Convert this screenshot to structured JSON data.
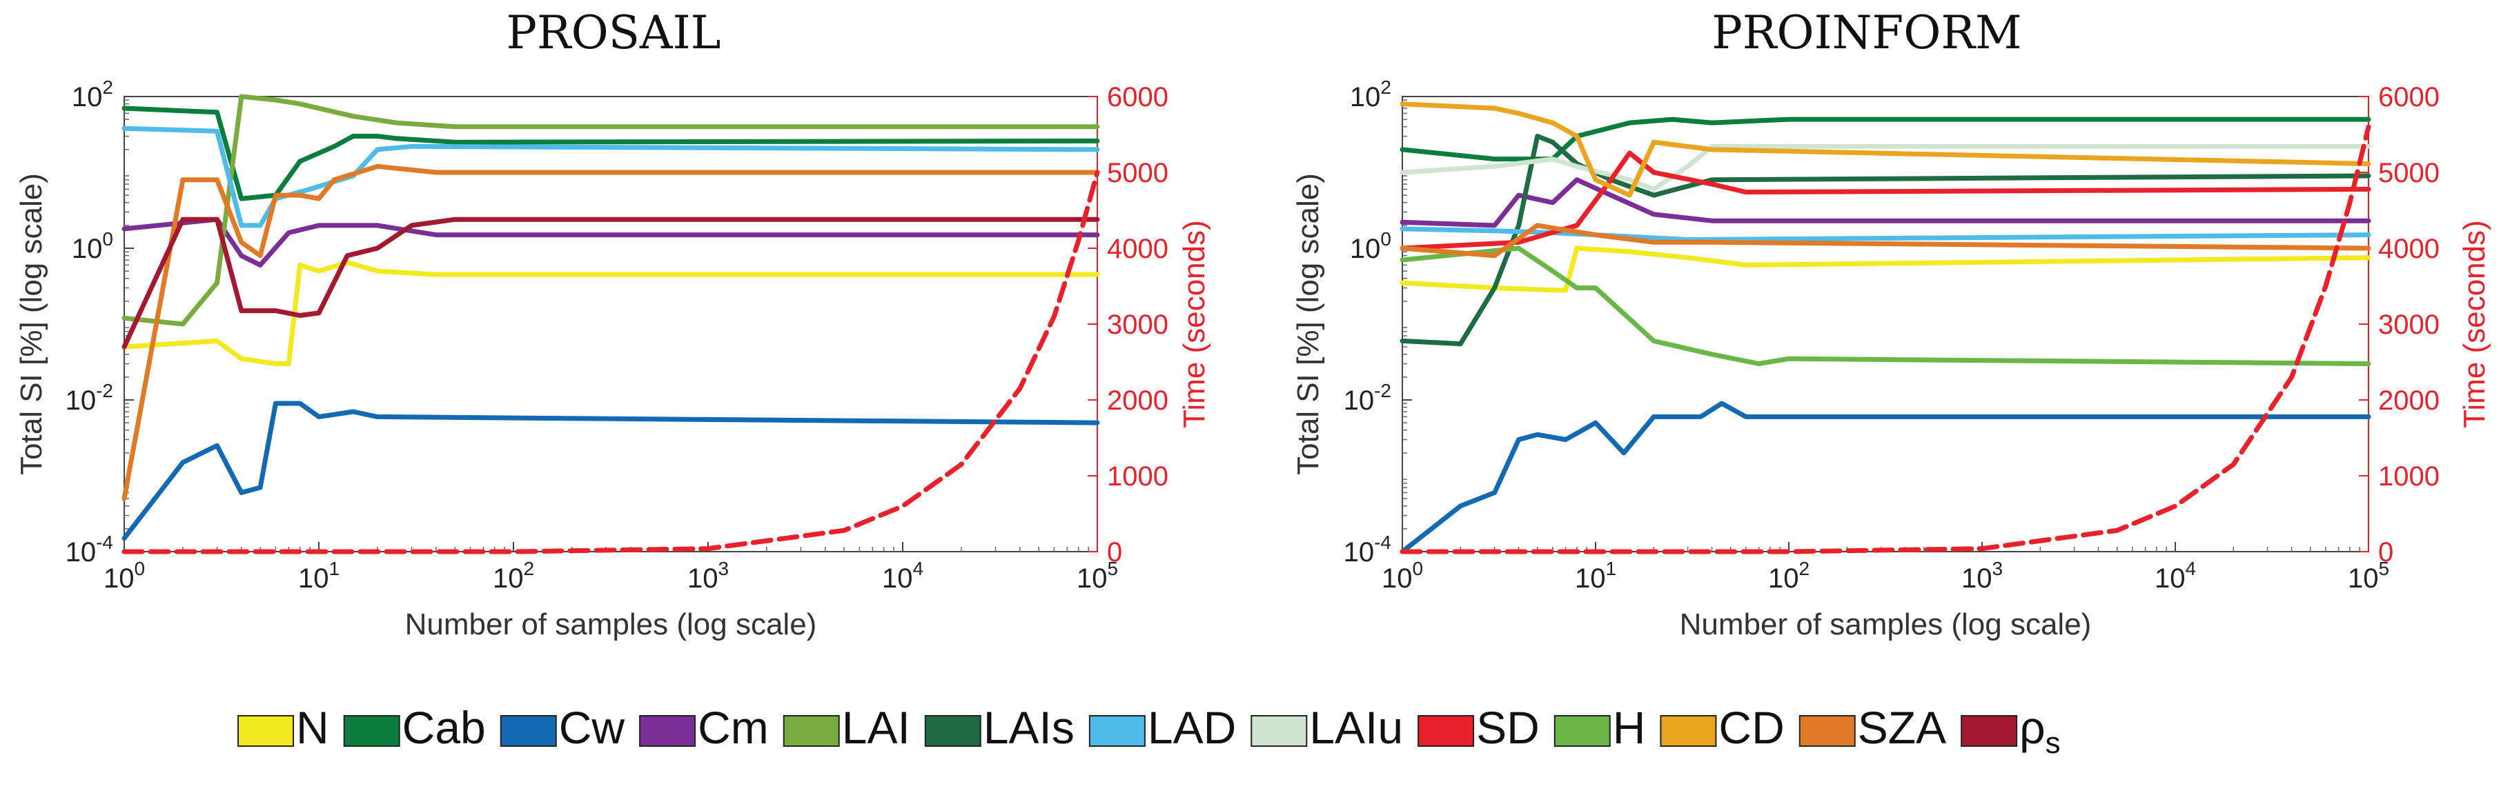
{
  "figure": {
    "legend": [
      {
        "label": "N",
        "color": "#f2ea1f"
      },
      {
        "label": "Cab",
        "color": "#0b7d3d"
      },
      {
        "label": "Cw",
        "color": "#1469b3"
      },
      {
        "label": "Cm",
        "color": "#7b2f96"
      },
      {
        "label": "LAI",
        "color": "#7aab3e"
      },
      {
        "label": "LAIs",
        "color": "#1f6b44"
      },
      {
        "label": "LAD",
        "color": "#4fbbe8"
      },
      {
        "label": "LAIu",
        "color": "#cfe5d2"
      },
      {
        "label": "SD",
        "color": "#e8212a"
      },
      {
        "label": "H",
        "color": "#6ab648"
      },
      {
        "label": "CD",
        "color": "#eaa520"
      },
      {
        "label": "SZA",
        "color": "#e07a27"
      },
      {
        "label": "ρ",
        "sub": "s",
        "color": "#a3192f"
      }
    ]
  },
  "chart_data": [
    {
      "type": "line",
      "title": "PROSAIL",
      "xlabel": "Number of samples (log scale)",
      "ylabel": "Total SI [%] (log scale)",
      "ylabel_right": "Time (seconds)",
      "xscale": "log",
      "yscale": "log",
      "xlim": [
        1,
        100000
      ],
      "ylim": [
        0.0001,
        100
      ],
      "ylim_right": [
        0,
        6000
      ],
      "x_ticks": [
        {
          "base": "10",
          "exp": "0"
        },
        {
          "base": "10",
          "exp": "1"
        },
        {
          "base": "10",
          "exp": "2"
        },
        {
          "base": "10",
          "exp": "3"
        },
        {
          "base": "10",
          "exp": "4"
        },
        {
          "base": "10",
          "exp": "5"
        }
      ],
      "y_ticks": [
        {
          "base": "10",
          "exp": "2"
        },
        {
          "base": "10",
          "exp": "0"
        },
        {
          "base": "10",
          "exp": "-2"
        },
        {
          "base": "10",
          "exp": "-4"
        }
      ],
      "y_right_ticks": [
        "6000",
        "5000",
        "4000",
        "3000",
        "2000",
        "1000",
        "0"
      ],
      "series": [
        {
          "name": "N",
          "color": "#f2ea1f",
          "points": [
            [
              1,
              0.05
            ],
            [
              3,
              0.06
            ],
            [
              4,
              0.035
            ],
            [
              6,
              0.03
            ],
            [
              7,
              0.03
            ],
            [
              8,
              0.6
            ],
            [
              10,
              0.5
            ],
            [
              14,
              0.65
            ],
            [
              20,
              0.5
            ],
            [
              40,
              0.45
            ],
            [
              100000,
              0.45
            ]
          ]
        },
        {
          "name": "Cab",
          "color": "#0b7d3d",
          "points": [
            [
              1,
              70
            ],
            [
              3,
              62
            ],
            [
              4,
              4.5
            ],
            [
              6,
              5
            ],
            [
              8,
              14
            ],
            [
              12,
              22
            ],
            [
              15,
              30
            ],
            [
              20,
              30
            ],
            [
              25,
              28
            ],
            [
              50,
              25
            ],
            [
              100000,
              26
            ]
          ]
        },
        {
          "name": "Cw",
          "color": "#1469b3",
          "points": [
            [
              1,
              0.00015
            ],
            [
              2,
              0.0015
            ],
            [
              3,
              0.0025
            ],
            [
              4,
              0.0006
            ],
            [
              5,
              0.0007
            ],
            [
              6,
              0.009
            ],
            [
              8,
              0.009
            ],
            [
              10,
              0.006
            ],
            [
              15,
              0.007
            ],
            [
              20,
              0.006
            ],
            [
              100000,
              0.005
            ]
          ]
        },
        {
          "name": "Cm",
          "color": "#7b2f96",
          "points": [
            [
              1,
              1.8
            ],
            [
              3,
              2.4
            ],
            [
              4,
              0.8
            ],
            [
              5,
              0.6
            ],
            [
              7,
              1.6
            ],
            [
              10,
              2
            ],
            [
              20,
              2
            ],
            [
              40,
              1.5
            ],
            [
              100000,
              1.5
            ]
          ]
        },
        {
          "name": "LAI",
          "color": "#7aab3e",
          "points": [
            [
              1,
              0.12
            ],
            [
              2,
              0.1
            ],
            [
              3,
              0.35
            ],
            [
              4,
              100
            ],
            [
              6,
              90
            ],
            [
              8,
              80
            ],
            [
              15,
              55
            ],
            [
              25,
              45
            ],
            [
              50,
              40
            ],
            [
              100000,
              40
            ]
          ]
        },
        {
          "name": "LAD",
          "color": "#4fbbe8",
          "points": [
            [
              1,
              38
            ],
            [
              3,
              35
            ],
            [
              4,
              2
            ],
            [
              5,
              2
            ],
            [
              6,
              4.5
            ],
            [
              9,
              6
            ],
            [
              15,
              9
            ],
            [
              20,
              20
            ],
            [
              30,
              22
            ],
            [
              100000,
              20
            ]
          ]
        },
        {
          "name": "SZA",
          "color": "#e07a27",
          "points": [
            [
              1,
              0.0005
            ],
            [
              2,
              8
            ],
            [
              3,
              8
            ],
            [
              4,
              1.2
            ],
            [
              5,
              0.8
            ],
            [
              6,
              5
            ],
            [
              8,
              5
            ],
            [
              10,
              4.5
            ],
            [
              12,
              8
            ],
            [
              20,
              12
            ],
            [
              40,
              10
            ],
            [
              100000,
              10
            ]
          ]
        },
        {
          "name": "ρs",
          "color": "#a3192f",
          "points": [
            [
              1,
              0.05
            ],
            [
              2,
              2.4
            ],
            [
              3,
              2.4
            ],
            [
              4,
              0.15
            ],
            [
              6,
              0.15
            ],
            [
              8,
              0.13
            ],
            [
              10,
              0.14
            ],
            [
              14,
              0.8
            ],
            [
              20,
              1
            ],
            [
              30,
              2
            ],
            [
              50,
              2.4
            ],
            [
              100000,
              2.4
            ]
          ]
        }
      ],
      "time_series": {
        "name": "Time (seconds)",
        "color": "#e8212a",
        "points": [
          [
            1,
            0
          ],
          [
            100,
            0
          ],
          [
            1000,
            40
          ],
          [
            5000,
            280
          ],
          [
            10000,
            600
          ],
          [
            20000,
            1150
          ],
          [
            40000,
            2150
          ],
          [
            60000,
            3100
          ],
          [
            80000,
            4100
          ],
          [
            100000,
            5000
          ]
        ]
      }
    },
    {
      "type": "line",
      "title": "PROINFORM",
      "xlabel": "Number of samples (log scale)",
      "ylabel": "Total SI [%] (log scale)",
      "ylabel_right": "Time (seconds)",
      "xscale": "log",
      "yscale": "log",
      "xlim": [
        1,
        100000
      ],
      "ylim": [
        0.0001,
        100
      ],
      "ylim_right": [
        0,
        6000
      ],
      "x_ticks": [
        {
          "base": "10",
          "exp": "0"
        },
        {
          "base": "10",
          "exp": "1"
        },
        {
          "base": "10",
          "exp": "2"
        },
        {
          "base": "10",
          "exp": "3"
        },
        {
          "base": "10",
          "exp": "4"
        },
        {
          "base": "10",
          "exp": "5"
        }
      ],
      "y_ticks": [
        {
          "base": "10",
          "exp": "2"
        },
        {
          "base": "10",
          "exp": "0"
        },
        {
          "base": "10",
          "exp": "-2"
        },
        {
          "base": "10",
          "exp": "-4"
        }
      ],
      "y_right_ticks": [
        "6000",
        "5000",
        "4000",
        "3000",
        "2000",
        "1000",
        "0"
      ],
      "series": [
        {
          "name": "N",
          "color": "#f2ea1f",
          "points": [
            [
              1,
              0.35
            ],
            [
              3,
              0.3
            ],
            [
              6,
              0.28
            ],
            [
              7,
              0.28
            ],
            [
              8,
              1
            ],
            [
              15,
              0.9
            ],
            [
              30,
              0.75
            ],
            [
              60,
              0.6
            ],
            [
              100000,
              0.75
            ]
          ]
        },
        {
          "name": "Cab",
          "color": "#0b7d3d",
          "points": [
            [
              1,
              20
            ],
            [
              3,
              15
            ],
            [
              6,
              15
            ],
            [
              8,
              30
            ],
            [
              15,
              45
            ],
            [
              25,
              50
            ],
            [
              40,
              45
            ],
            [
              100,
              50
            ],
            [
              100000,
              50
            ]
          ]
        },
        {
          "name": "Cw",
          "color": "#1469b3",
          "points": [
            [
              1,
              0.0001
            ],
            [
              2,
              0.0004
            ],
            [
              3,
              0.0006
            ],
            [
              4,
              0.003
            ],
            [
              5,
              0.0035
            ],
            [
              7,
              0.003
            ],
            [
              10,
              0.005
            ],
            [
              14,
              0.002
            ],
            [
              20,
              0.006
            ],
            [
              35,
              0.006
            ],
            [
              45,
              0.009
            ],
            [
              60,
              0.006
            ],
            [
              100000,
              0.006
            ]
          ]
        },
        {
          "name": "Cm",
          "color": "#7b2f96",
          "points": [
            [
              1,
              2.2
            ],
            [
              3,
              2
            ],
            [
              4,
              5
            ],
            [
              6,
              4
            ],
            [
              8,
              8
            ],
            [
              12,
              5
            ],
            [
              20,
              2.8
            ],
            [
              40,
              2.3
            ],
            [
              100000,
              2.3
            ]
          ]
        },
        {
          "name": "LAIs",
          "color": "#1f6b44",
          "points": [
            [
              1,
              0.06
            ],
            [
              2,
              0.055
            ],
            [
              3,
              0.3
            ],
            [
              4,
              2
            ],
            [
              5,
              30
            ],
            [
              6,
              25
            ],
            [
              8,
              13
            ],
            [
              12,
              8
            ],
            [
              20,
              5
            ],
            [
              40,
              8
            ],
            [
              100000,
              9
            ]
          ]
        },
        {
          "name": "LAD",
          "color": "#4fbbe8",
          "points": [
            [
              1,
              1.8
            ],
            [
              3,
              1.7
            ],
            [
              6,
              1.6
            ],
            [
              10,
              1.5
            ],
            [
              30,
              1.3
            ],
            [
              100000,
              1.5
            ]
          ]
        },
        {
          "name": "LAIu",
          "color": "#cfe5d2",
          "points": [
            [
              1,
              10
            ],
            [
              3,
              12
            ],
            [
              6,
              15
            ],
            [
              8,
              12
            ],
            [
              15,
              8
            ],
            [
              20,
              6
            ],
            [
              30,
              12
            ],
            [
              40,
              22
            ],
            [
              100000,
              22
            ]
          ]
        },
        {
          "name": "SD",
          "color": "#e8212a",
          "points": [
            [
              1,
              1
            ],
            [
              4,
              1.2
            ],
            [
              8,
              2
            ],
            [
              12,
              8
            ],
            [
              15,
              18
            ],
            [
              20,
              10
            ],
            [
              40,
              7
            ],
            [
              60,
              5.5
            ],
            [
              100000,
              6
            ]
          ]
        },
        {
          "name": "H",
          "color": "#6ab648",
          "points": [
            [
              1,
              0.7
            ],
            [
              4,
              1
            ],
            [
              6,
              0.5
            ],
            [
              8,
              0.3
            ],
            [
              10,
              0.3
            ],
            [
              20,
              0.06
            ],
            [
              40,
              0.04
            ],
            [
              70,
              0.03
            ],
            [
              100,
              0.035
            ],
            [
              100000,
              0.03
            ]
          ]
        },
        {
          "name": "CD",
          "color": "#eaa520",
          "points": [
            [
              1,
              80
            ],
            [
              3,
              70
            ],
            [
              4,
              60
            ],
            [
              6,
              45
            ],
            [
              8,
              30
            ],
            [
              10,
              8
            ],
            [
              15,
              5
            ],
            [
              20,
              25
            ],
            [
              40,
              20
            ],
            [
              100000,
              13
            ]
          ]
        },
        {
          "name": "SZA",
          "color": "#e07a27",
          "points": [
            [
              1,
              1
            ],
            [
              3,
              0.8
            ],
            [
              5,
              2
            ],
            [
              10,
              1.5
            ],
            [
              20,
              1.2
            ],
            [
              40,
              1.2
            ],
            [
              100000,
              1
            ]
          ]
        }
      ],
      "time_series": {
        "name": "Time (seconds)",
        "color": "#e8212a",
        "points": [
          [
            1,
            0
          ],
          [
            100,
            0
          ],
          [
            1000,
            40
          ],
          [
            5000,
            280
          ],
          [
            10000,
            600
          ],
          [
            20000,
            1150
          ],
          [
            40000,
            2300
          ],
          [
            60000,
            3500
          ],
          [
            80000,
            4600
          ],
          [
            100000,
            5600
          ]
        ]
      }
    }
  ]
}
